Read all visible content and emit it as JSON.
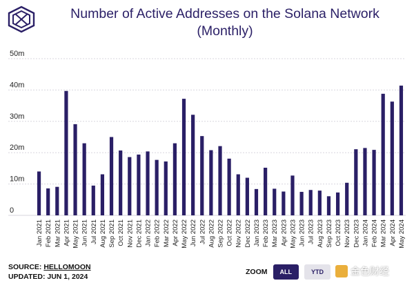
{
  "header": {
    "title_line1": "Number of Active Addresses on the Solana Network",
    "title_line2": "(Monthly)"
  },
  "footer": {
    "source_prefix": "SOURCE: ",
    "source_name": "HELLOMOON",
    "updated": "UPDATED: JUN 1, 2024"
  },
  "zoom": {
    "label": "ZOOM",
    "buttons": [
      {
        "label": "ALL",
        "active": true
      },
      {
        "label": "YTD",
        "active": false
      }
    ]
  },
  "watermark": {
    "text": "金色财经"
  },
  "colors": {
    "bar": "#2a1f66",
    "title": "#2a1f66",
    "grid": "#d7d6de"
  },
  "chart_data": {
    "type": "bar",
    "categories": [
      "Jan 2021",
      "Feb 2021",
      "Mar 2021",
      "Apr 2021",
      "May 2021",
      "Jun 2021",
      "Jul 2021",
      "Aug 2021",
      "Sep 2021",
      "Oct 2021",
      "Nov 2021",
      "Dec 2021",
      "Jan 2022",
      "Feb 2022",
      "Mar 2022",
      "Apr 2022",
      "May 2022",
      "Jun 2022",
      "Jul 2022",
      "Aug 2022",
      "Sep 2022",
      "Oct 2022",
      "Nov 2022",
      "Dec 2022",
      "Jan 2023",
      "Feb 2023",
      "Mar 2023",
      "Apr 2023",
      "May 2023",
      "Jun 2023",
      "Jul 2023",
      "Aug 2023",
      "Sep 2023",
      "Oct 2023",
      "Nov 2023",
      "Dec 2023",
      "Jan 2024",
      "Feb 2024",
      "Mar 2024",
      "Apr 2024",
      "May 2024"
    ],
    "values": [
      14,
      8.6,
      9.1,
      39.7,
      29.1,
      23,
      9.5,
      13.1,
      25,
      20.7,
      18.6,
      19.4,
      20.4,
      17.7,
      17.2,
      23,
      37.2,
      32.1,
      25.3,
      20.8,
      22.1,
      18.1,
      13.1,
      12,
      8.4,
      15.2,
      8.5,
      7.6,
      12.7,
      7.5,
      8.1,
      7.9,
      6.1,
      7.3,
      10.4,
      21.1,
      21.5,
      20.9,
      38.8,
      36.3,
      41.4
    ],
    "ylim": [
      0,
      50
    ],
    "yticks": [
      0,
      10,
      20,
      30,
      40,
      50
    ],
    "ytick_labels": [
      "0",
      "10m",
      "20m",
      "30m",
      "40m",
      "50m"
    ],
    "grid": true,
    "xlabel": "",
    "ylabel": ""
  }
}
